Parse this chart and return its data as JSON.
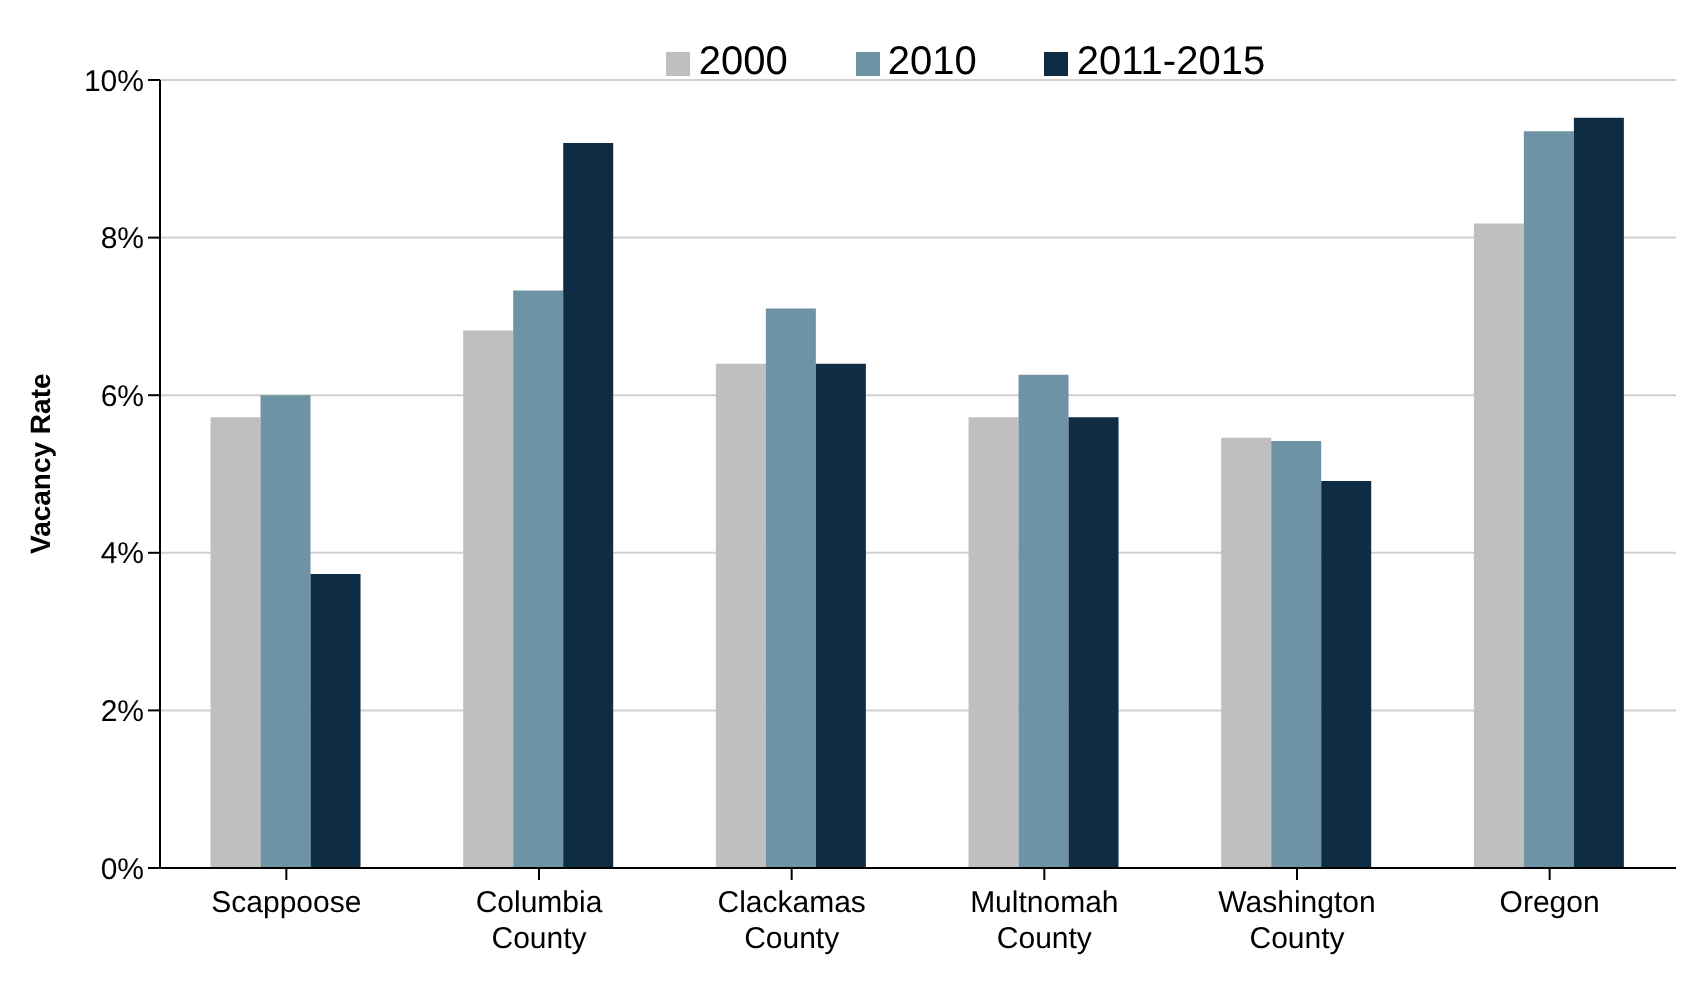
{
  "chart_data": {
    "type": "bar",
    "ylabel": "Vacancy Rate",
    "categories": [
      "Scappoose",
      "Columbia\nCounty",
      "Clackamas\nCounty",
      "Multnomah\nCounty",
      "Washington\nCounty",
      "Oregon"
    ],
    "series": [
      {
        "name": "2000",
        "color": "#bfbfbf",
        "values": [
          5.72,
          6.82,
          6.4,
          5.72,
          5.46,
          8.18
        ]
      },
      {
        "name": "2010",
        "color": "#6e93a5",
        "values": [
          6.0,
          7.33,
          7.1,
          6.26,
          5.42,
          9.35
        ]
      },
      {
        "name": "2011-2015",
        "color": "#0f2c45",
        "values": [
          3.73,
          9.2,
          6.4,
          5.72,
          4.91,
          9.52
        ]
      }
    ],
    "ylim": [
      0,
      10
    ],
    "yticks": [
      {
        "value": 0,
        "label": "0%"
      },
      {
        "value": 2,
        "label": "2%"
      },
      {
        "value": 4,
        "label": "4%"
      },
      {
        "value": 6,
        "label": "6%"
      },
      {
        "value": 8,
        "label": "8%"
      },
      {
        "value": 10,
        "label": "10%"
      }
    ],
    "grid": "y",
    "legend": "top"
  }
}
